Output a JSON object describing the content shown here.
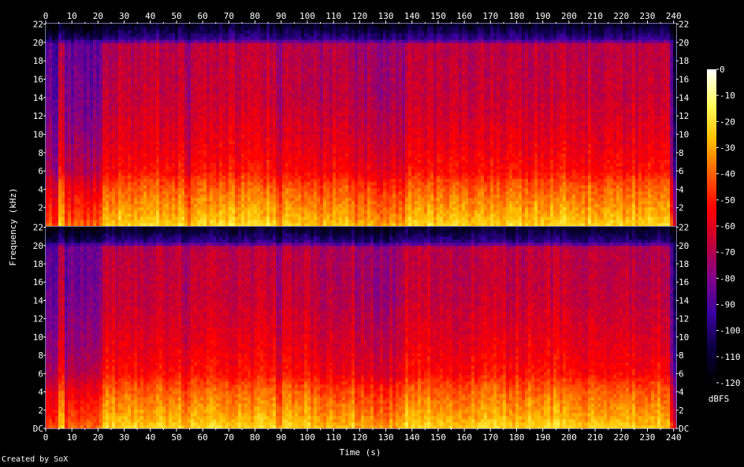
{
  "chart_data": {
    "type": "heatmap",
    "subtype": "spectrogram",
    "title": "",
    "xlabel": "Time (s)",
    "ylabel": "Frequency (kHz)",
    "xlim": [
      0,
      241
    ],
    "ylim": [
      0,
      22.05
    ],
    "x_ticks": [
      "0",
      "10",
      "20",
      "30",
      "40",
      "50",
      "60",
      "70",
      "80",
      "90",
      "100",
      "110",
      "120",
      "130",
      "140",
      "150",
      "160",
      "170",
      "180",
      "190",
      "200",
      "210",
      "220",
      "230",
      "240"
    ],
    "x_minor_ticks": [
      "5",
      "15",
      "25",
      "35",
      "45",
      "55",
      "65",
      "75",
      "85",
      "95",
      "105",
      "115",
      "125",
      "135",
      "145",
      "155",
      "165",
      "175",
      "185",
      "195",
      "205",
      "215",
      "225",
      "235"
    ],
    "y_ticks": [
      "2",
      "4",
      "6",
      "8",
      "10",
      "12",
      "14",
      "16",
      "18",
      "20",
      "22"
    ],
    "y_bottom_label": "DC",
    "channels": 2,
    "colorbar": {
      "label": "dBFS",
      "min": -120,
      "max": 0,
      "ticks": [
        "0",
        "-10",
        "-20",
        "-30",
        "-40",
        "-50",
        "-60",
        "-70",
        "-80",
        "-90",
        "-100",
        "-110",
        "-120"
      ],
      "placement": "right",
      "colors": [
        "#ffffff",
        "#ffff60",
        "#ffc000",
        "#ff6000",
        "#ff0000",
        "#c0003a",
        "#80008a",
        "#3a00a0",
        "#0a0040",
        "#000000"
      ]
    },
    "time_segments": [
      {
        "t0": 0,
        "t1": 2,
        "level": 0.55
      },
      {
        "t0": 2,
        "t1": 5,
        "level": 0.42
      },
      {
        "t0": 5,
        "t1": 7,
        "level": 0.75
      },
      {
        "t0": 7,
        "t1": 20,
        "level": 0.5
      },
      {
        "t0": 20,
        "t1": 22,
        "level": 0.62
      },
      {
        "t0": 22,
        "t1": 53,
        "level": 0.82
      },
      {
        "t0": 53,
        "t1": 55,
        "level": 0.7
      },
      {
        "t0": 55,
        "t1": 88,
        "level": 0.83
      },
      {
        "t0": 88,
        "t1": 90,
        "level": 0.7
      },
      {
        "t0": 90,
        "t1": 103,
        "level": 0.8
      },
      {
        "t0": 103,
        "t1": 110,
        "level": 0.74
      },
      {
        "t0": 110,
        "t1": 118,
        "level": 0.78
      },
      {
        "t0": 118,
        "t1": 124,
        "level": 0.72
      },
      {
        "t0": 124,
        "t1": 137,
        "level": 0.68
      },
      {
        "t0": 137,
        "t1": 147,
        "level": 0.84
      },
      {
        "t0": 147,
        "t1": 158,
        "level": 0.8
      },
      {
        "t0": 158,
        "t1": 182,
        "level": 0.82
      },
      {
        "t0": 182,
        "t1": 205,
        "level": 0.83
      },
      {
        "t0": 205,
        "t1": 238,
        "level": 0.82
      },
      {
        "t0": 238,
        "t1": 240,
        "level": 0.45
      }
    ],
    "frequency_profile_db": [
      {
        "f": 0,
        "db": -12
      },
      {
        "f": 1,
        "db": -18
      },
      {
        "f": 2.5,
        "db": -24
      },
      {
        "f": 4.5,
        "db": -32
      },
      {
        "f": 6,
        "db": -42
      },
      {
        "f": 9,
        "db": -48
      },
      {
        "f": 14,
        "db": -55
      },
      {
        "f": 19.8,
        "db": -58
      },
      {
        "f": 20.3,
        "db": -90
      },
      {
        "f": 22.05,
        "db": -108
      }
    ]
  },
  "footer": {
    "credit": "Created by SoX"
  }
}
